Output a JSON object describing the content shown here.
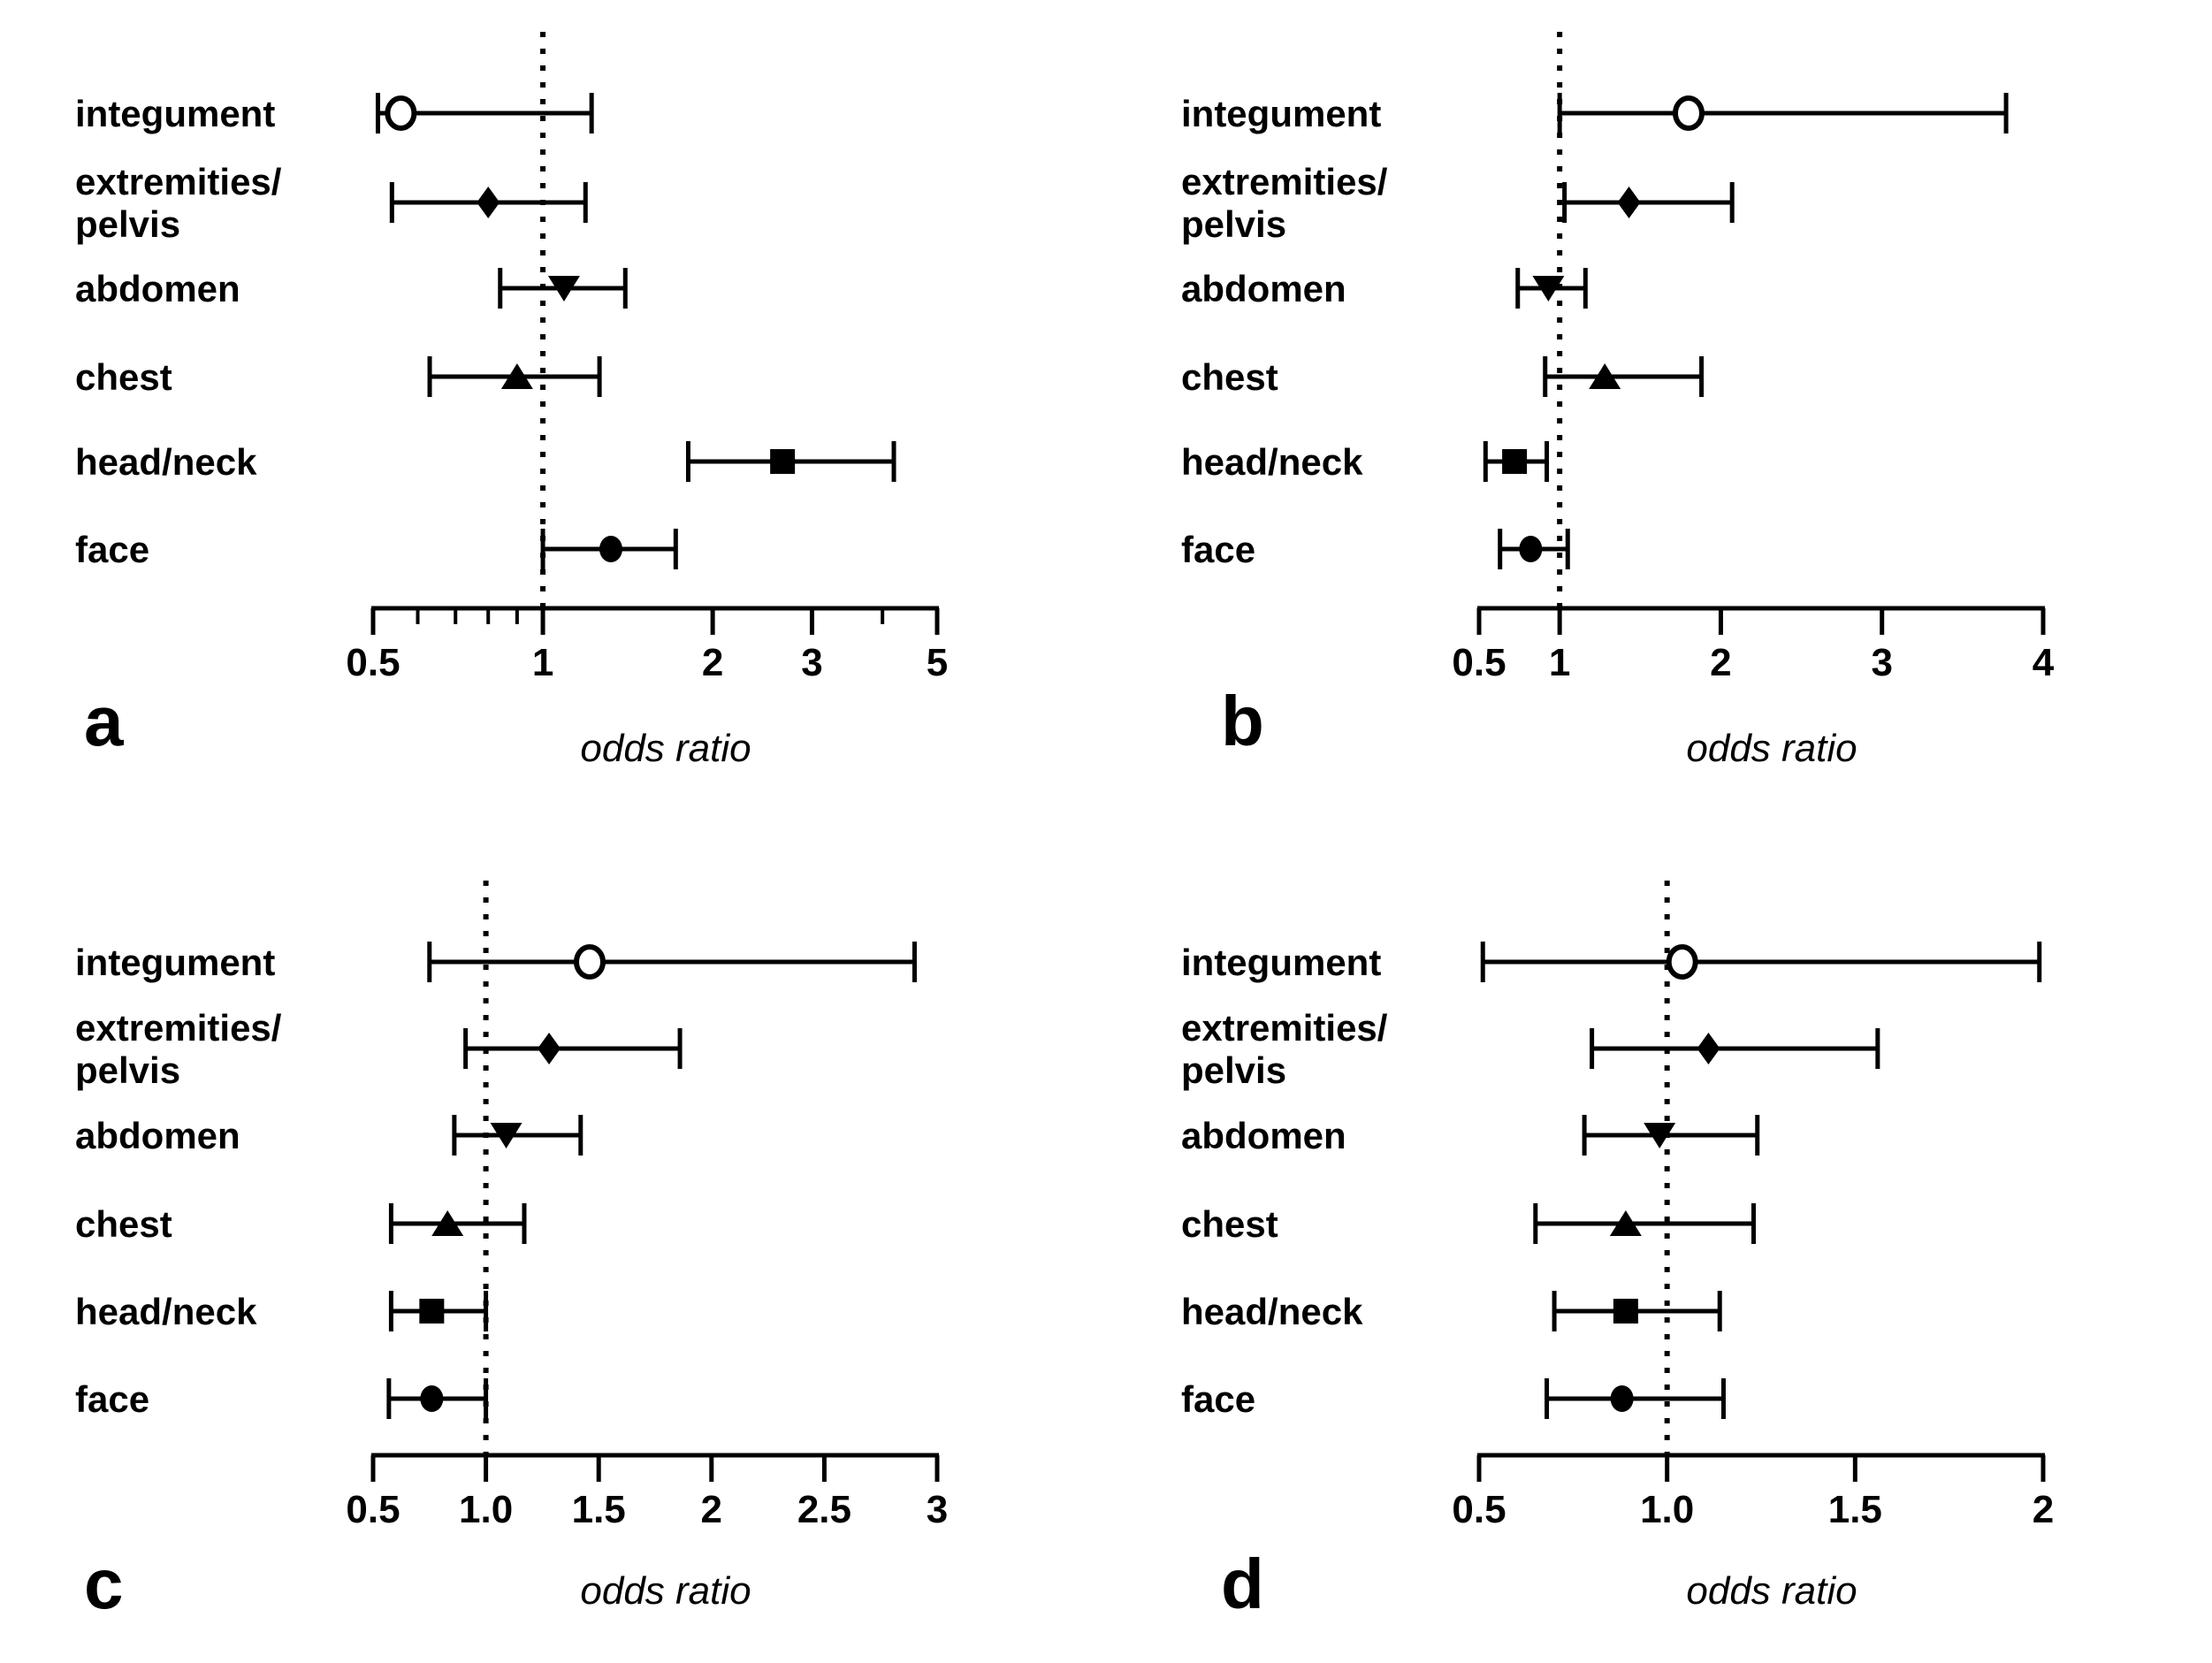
{
  "figure": {
    "background": "#ffffff",
    "ink": "#000000",
    "description": "Four forest plots of odds ratios by body region"
  },
  "chart_data": [
    {
      "type": "scatter",
      "subtype": "forest-plot",
      "panel_label": "a",
      "xlabel": "odds ratio",
      "x_scale": "log",
      "xlim": [
        0.5,
        5
      ],
      "reference_line": 1,
      "grid": false,
      "ticks": [
        {
          "v": 0.5,
          "t": "0.5"
        },
        {
          "v": 1,
          "t": "1"
        },
        {
          "v": 2,
          "t": "2"
        },
        {
          "v": 3,
          "t": "3"
        },
        {
          "v": 5,
          "t": "5"
        }
      ],
      "minor_ticks": [
        0.6,
        0.7,
        0.8,
        0.9,
        4
      ],
      "rows": [
        {
          "label": [
            "integument"
          ],
          "marker": "open-circle",
          "or": 0.56,
          "ci": [
            0.51,
            1.22
          ]
        },
        {
          "label": [
            "extremities/",
            "pelvis"
          ],
          "marker": "filled-diamond",
          "or": 0.8,
          "ci": [
            0.54,
            1.19
          ]
        },
        {
          "label": [
            "abdomen"
          ],
          "marker": "filled-triangle-down",
          "or": 1.09,
          "ci": [
            0.84,
            1.4
          ]
        },
        {
          "label": [
            "chest"
          ],
          "marker": "filled-triangle-up",
          "or": 0.9,
          "ci": [
            0.63,
            1.26
          ]
        },
        {
          "label": [
            "head/neck"
          ],
          "marker": "filled-square",
          "or": 2.66,
          "ci": [
            1.81,
            4.19
          ]
        },
        {
          "label": [
            "face"
          ],
          "marker": "filled-circle",
          "or": 1.32,
          "ci": [
            1.0,
            1.72
          ]
        }
      ]
    },
    {
      "type": "scatter",
      "subtype": "forest-plot",
      "panel_label": "b",
      "xlabel": "odds ratio",
      "x_scale": "linear",
      "xlim": [
        0.5,
        4
      ],
      "reference_line": 1,
      "grid": false,
      "ticks": [
        {
          "v": 0.5,
          "t": "0.5"
        },
        {
          "v": 1,
          "t": "1"
        },
        {
          "v": 2,
          "t": "2"
        },
        {
          "v": 3,
          "t": "3"
        },
        {
          "v": 4,
          "t": "4"
        }
      ],
      "minor_ticks": [],
      "rows": [
        {
          "label": [
            "integument"
          ],
          "marker": "open-circle",
          "or": 1.8,
          "ci": [
            1.0,
            3.77
          ]
        },
        {
          "label": [
            "extremities/",
            "pelvis"
          ],
          "marker": "filled-diamond",
          "or": 1.43,
          "ci": [
            1.03,
            2.07
          ]
        },
        {
          "label": [
            "abdomen"
          ],
          "marker": "filled-triangle-down",
          "or": 0.93,
          "ci": [
            0.74,
            1.16
          ]
        },
        {
          "label": [
            "chest"
          ],
          "marker": "filled-triangle-up",
          "or": 1.28,
          "ci": [
            0.91,
            1.88
          ]
        },
        {
          "label": [
            "head/neck"
          ],
          "marker": "filled-square",
          "or": 0.72,
          "ci": [
            0.54,
            0.92
          ]
        },
        {
          "label": [
            "face"
          ],
          "marker": "filled-circle",
          "or": 0.82,
          "ci": [
            0.63,
            1.05
          ]
        }
      ]
    },
    {
      "type": "scatter",
      "subtype": "forest-plot",
      "panel_label": "c",
      "xlabel": "odds ratio",
      "x_scale": "linear",
      "xlim": [
        0.5,
        3
      ],
      "reference_line": 1,
      "grid": false,
      "ticks": [
        {
          "v": 0.5,
          "t": "0.5"
        },
        {
          "v": 1,
          "t": "1.0"
        },
        {
          "v": 1.5,
          "t": "1.5"
        },
        {
          "v": 2,
          "t": "2"
        },
        {
          "v": 2.5,
          "t": "2.5"
        },
        {
          "v": 3,
          "t": "3"
        }
      ],
      "minor_ticks": [],
      "rows": [
        {
          "label": [
            "integument"
          ],
          "marker": "open-circle",
          "or": 1.46,
          "ci": [
            0.75,
            2.9
          ]
        },
        {
          "label": [
            "extremities/",
            "pelvis"
          ],
          "marker": "filled-diamond",
          "or": 1.28,
          "ci": [
            0.91,
            1.86
          ]
        },
        {
          "label": [
            "abdomen"
          ],
          "marker": "filled-triangle-down",
          "or": 1.09,
          "ci": [
            0.86,
            1.42
          ]
        },
        {
          "label": [
            "chest"
          ],
          "marker": "filled-triangle-up",
          "or": 0.83,
          "ci": [
            0.58,
            1.17
          ]
        },
        {
          "label": [
            "head/neck"
          ],
          "marker": "filled-square",
          "or": 0.76,
          "ci": [
            0.58,
            1.0
          ]
        },
        {
          "label": [
            "face"
          ],
          "marker": "filled-circle",
          "or": 0.76,
          "ci": [
            0.57,
            1.0
          ]
        }
      ]
    },
    {
      "type": "scatter",
      "subtype": "forest-plot",
      "panel_label": "d",
      "xlabel": "odds ratio",
      "x_scale": "linear",
      "xlim": [
        0.5,
        2
      ],
      "reference_line": 1,
      "grid": false,
      "ticks": [
        {
          "v": 0.5,
          "t": "0.5"
        },
        {
          "v": 1,
          "t": "1.0"
        },
        {
          "v": 1.5,
          "t": "1.5"
        },
        {
          "v": 2,
          "t": "2"
        }
      ],
      "minor_ticks": [],
      "rows": [
        {
          "label": [
            "integument"
          ],
          "marker": "open-circle",
          "or": 1.04,
          "ci": [
            0.51,
            1.99
          ]
        },
        {
          "label": [
            "extremities/",
            "pelvis"
          ],
          "marker": "filled-diamond",
          "or": 1.11,
          "ci": [
            0.8,
            1.56
          ]
        },
        {
          "label": [
            "abdomen"
          ],
          "marker": "filled-triangle-down",
          "or": 0.98,
          "ci": [
            0.78,
            1.24
          ]
        },
        {
          "label": [
            "chest"
          ],
          "marker": "filled-triangle-up",
          "or": 0.89,
          "ci": [
            0.65,
            1.23
          ]
        },
        {
          "label": [
            "head/neck"
          ],
          "marker": "filled-square",
          "or": 0.89,
          "ci": [
            0.7,
            1.14
          ]
        },
        {
          "label": [
            "face"
          ],
          "marker": "filled-circle",
          "or": 0.88,
          "ci": [
            0.68,
            1.15
          ]
        }
      ]
    }
  ]
}
